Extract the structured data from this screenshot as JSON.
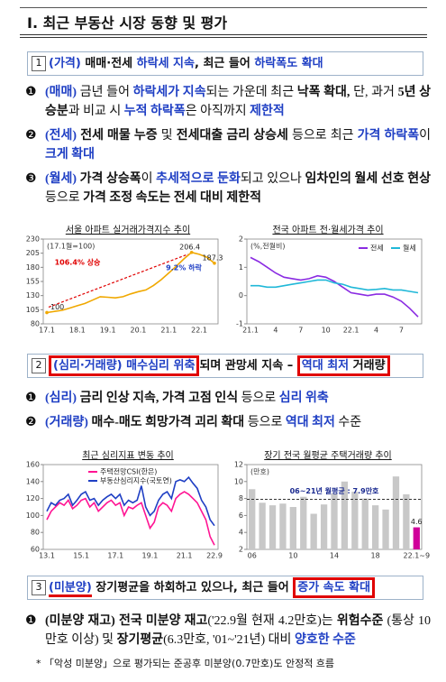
{
  "header": {
    "title": "Ⅰ. 최근 부동산 시장 동향 및 평가"
  },
  "sections": [
    {
      "number": "1",
      "heading": [
        {
          "text": "(가격)",
          "color": "#1f3fc4"
        },
        {
          "text": " 매매·전세 "
        },
        {
          "text": "하락세 지속",
          "color": "#1f3fc4"
        },
        {
          "text": ", 최근 들어 "
        },
        {
          "text": "하락폭도 확대",
          "color": "#1f3fc4"
        }
      ],
      "bullets": [
        {
          "marker": "❶",
          "segments": [
            {
              "text": "(매매)",
              "color": "#1f3fc4",
              "bold": true
            },
            {
              "text": " 금년 들어 "
            },
            {
              "text": "하락세가 지속",
              "color": "#1f3fc4",
              "bold": true
            },
            {
              "text": "되는 가운데 최근 "
            },
            {
              "text": "낙폭 확대,",
              "bold": true
            },
            {
              "text": " 단, 과거 "
            },
            {
              "text": "5년 상승분",
              "bold": true
            },
            {
              "text": "과 비교 시 "
            },
            {
              "text": "누적 하락폭",
              "color": "#1f3fc4",
              "bold": true
            },
            {
              "text": "은 아직까지 "
            },
            {
              "text": "제한적",
              "color": "#1f3fc4",
              "bold": true
            }
          ]
        },
        {
          "marker": "❷",
          "segments": [
            {
              "text": "(전세)",
              "color": "#1f3fc4",
              "bold": true
            },
            {
              "text": " 전세 매물 누증",
              "bold": true
            },
            {
              "text": " 및 "
            },
            {
              "text": "전세대출 금리 상승세",
              "bold": true
            },
            {
              "text": " 등으로 최근 "
            },
            {
              "text": "가격 하락폭",
              "color": "#1f3fc4",
              "bold": true
            },
            {
              "text": "이 "
            },
            {
              "text": "크게 확대",
              "color": "#1f3fc4",
              "bold": true
            }
          ]
        },
        {
          "marker": "❸",
          "segments": [
            {
              "text": "(월세)",
              "color": "#1f3fc4",
              "bold": true
            },
            {
              "text": " 가격 상승폭",
              "bold": true
            },
            {
              "text": "이 "
            },
            {
              "text": "추세적으로 둔화",
              "color": "#1f3fc4",
              "bold": true
            },
            {
              "text": "되고 있으나 "
            },
            {
              "text": "임차인의 월세 선호 현상",
              "bold": true
            },
            {
              "text": " 등으로 "
            },
            {
              "text": "가격 조정 속도는 전세 대비 제한적",
              "bold": true
            }
          ]
        }
      ]
    },
    {
      "number": "2",
      "heading": [
        {
          "text": "(심리·거래량)",
          "color": "#1f3fc4",
          "outline": "#e00000"
        },
        {
          "text": " 매수심리 위축",
          "color": "#1f3fc4",
          "outline": "#e00000"
        },
        {
          "text": "되며 관망세 지속 – "
        },
        {
          "text": "역대 최저",
          "color": "#1f3fc4",
          "outline": "#e00000"
        },
        {
          "text": " 거래량",
          "outline": "#e00000"
        }
      ],
      "bullets": [
        {
          "marker": "❶",
          "segments": [
            {
              "text": "(심리)",
              "color": "#1f3fc4",
              "bold": true
            },
            {
              "text": " 금리 인상 지속, 가격 고점 인식",
              "bold": true
            },
            {
              "text": " 등으로 "
            },
            {
              "text": "심리 위축",
              "color": "#1f3fc4",
              "bold": true
            }
          ]
        },
        {
          "marker": "❷",
          "segments": [
            {
              "text": "(거래량)",
              "color": "#1f3fc4",
              "bold": true
            },
            {
              "text": " 매수-매도 희망가격 괴리 확대",
              "bold": true
            },
            {
              "text": " 등으로 "
            },
            {
              "text": "역대 최저",
              "color": "#1f3fc4",
              "bold": true
            },
            {
              "text": " 수준"
            }
          ]
        }
      ]
    },
    {
      "number": "3",
      "heading": [
        {
          "text": "(미분양)",
          "color": "#1f3fc4",
          "underline": "#e00000"
        },
        {
          "text": " 장기평균을 하회하고 있으나, 최근 들어 "
        },
        {
          "text": "증가 속도 확대",
          "color": "#1f3fc4",
          "outline": "#e00000"
        }
      ],
      "bullets": [
        {
          "marker": "❶",
          "segments": [
            {
              "text": "(미분양 재고)",
              "bold": true
            },
            {
              "text": " 전국 미분양 재고",
              "bold": true
            },
            {
              "text": "('22.9월 현재 4.2만호)는 "
            },
            {
              "text": "위험수준",
              "bold": true
            },
            {
              "text": " (통상 10만호 이상) 및 "
            },
            {
              "text": "장기평균",
              "bold": true
            },
            {
              "text": "(6.3만호, '01~'21년) 대비 "
            },
            {
              "text": "양호한 수준",
              "color": "#1f3fc4",
              "bold": true
            }
          ]
        }
      ]
    }
  ],
  "footnote": "* 「악성 미분양」으로 평가되는 준공후 미분양(0.7만호)도 안정적 흐름",
  "chart_data": [
    {
      "type": "line",
      "title": "서울 아파트 실거래가격지수 추이",
      "note": "(17.1월=100)",
      "categories": [
        "17.1",
        null,
        null,
        null,
        "18.1",
        null,
        null,
        null,
        "19.1",
        null,
        null,
        null,
        "20.1",
        null,
        null,
        null,
        "21.1",
        null,
        null,
        null,
        "22.1",
        null,
        null
      ],
      "series": [
        {
          "name": "서울 아파트 실거래가격지수",
          "color": "#f0a800",
          "values": [
            100,
            102,
            104,
            108,
            112,
            116,
            122,
            128,
            127,
            126,
            128,
            133,
            137,
            140,
            148,
            158,
            170,
            182,
            195,
            206.4,
            203,
            198,
            187.3
          ],
          "value_labels": [
            "100",
            null,
            null,
            null,
            null,
            null,
            null,
            null,
            null,
            null,
            null,
            null,
            null,
            null,
            null,
            null,
            null,
            null,
            null,
            "206.4",
            null,
            null,
            "187.3"
          ]
        }
      ],
      "annotations": [
        {
          "text": "106.4% 상승",
          "color": "#e00000"
        },
        {
          "text": "9.2% 하락",
          "color": "#1f3fc4"
        }
      ],
      "ylim": [
        80,
        230
      ],
      "yticks": [
        80,
        105,
        130,
        155,
        180,
        205,
        230
      ]
    },
    {
      "type": "line",
      "title": "전국 아파트 전·월세가격 추이",
      "note": "(%,전월비)",
      "legend": "top-right",
      "categories": [
        "21.1",
        null,
        null,
        "4",
        null,
        null,
        "7",
        null,
        null,
        "10",
        null,
        null,
        "22.1",
        null,
        null,
        "4",
        null,
        null,
        "7",
        null,
        null
      ],
      "series": [
        {
          "name": "전세",
          "color": "#8a2be2",
          "values": [
            1.35,
            1.2,
            1.0,
            0.8,
            0.65,
            0.6,
            0.55,
            0.6,
            0.7,
            0.65,
            0.5,
            0.3,
            0.1,
            0.05,
            0.0,
            0.05,
            0.05,
            -0.05,
            -0.2,
            -0.45,
            -0.75
          ]
        },
        {
          "name": "월세",
          "color": "#20b8d8",
          "values": [
            0.35,
            0.35,
            0.3,
            0.3,
            0.35,
            0.4,
            0.45,
            0.5,
            0.55,
            0.55,
            0.45,
            0.4,
            0.3,
            0.25,
            0.2,
            0.22,
            0.25,
            0.2,
            0.2,
            0.15,
            0.1
          ]
        }
      ],
      "ylim": [
        -1,
        2
      ],
      "yticks": [
        -1,
        0,
        1,
        2
      ]
    },
    {
      "type": "line",
      "title": "최근 심리지표 변동 추이",
      "legend": "top",
      "categories": [
        "13.1",
        null,
        null,
        null,
        null,
        null,
        null,
        null,
        "15.1",
        null,
        null,
        null,
        null,
        null,
        null,
        null,
        "17.1",
        null,
        null,
        null,
        null,
        null,
        null,
        null,
        "19.1",
        null,
        null,
        null,
        null,
        null,
        null,
        null,
        "21.1",
        null,
        null,
        null,
        null,
        null,
        null,
        "22.9"
      ],
      "series": [
        {
          "name": "주택전망CSI(한은)",
          "color": "#ff1493",
          "values": [
            95,
            105,
            110,
            115,
            112,
            118,
            108,
            112,
            118,
            120,
            110,
            115,
            105,
            110,
            115,
            118,
            112,
            115,
            100,
            110,
            108,
            112,
            115,
            100,
            85,
            92,
            110,
            115,
            112,
            105,
            120,
            125,
            128,
            125,
            120,
            115,
            105,
            95,
            75,
            65
          ]
        },
        {
          "name": "부동산심리지수(국토연)",
          "color": "#1f3fc4",
          "values": [
            105,
            115,
            112,
            118,
            120,
            125,
            112,
            118,
            125,
            128,
            118,
            120,
            112,
            118,
            122,
            125,
            120,
            125,
            112,
            118,
            115,
            118,
            135,
            110,
            100,
            105,
            118,
            125,
            128,
            120,
            140,
            142,
            140,
            145,
            138,
            132,
            118,
            110,
            95,
            88
          ]
        }
      ],
      "ylim": [
        60,
        160
      ],
      "yticks": [
        60,
        80,
        100,
        120,
        140,
        160
      ]
    },
    {
      "type": "bar",
      "title": "장기 전국 월평균 주택거래량 추이",
      "note": "(만호)",
      "categories": [
        "06",
        null,
        null,
        null,
        "10",
        null,
        null,
        null,
        "14",
        null,
        null,
        null,
        "18",
        null,
        null,
        null,
        "22.1~9"
      ],
      "values": [
        9.1,
        7.5,
        7.2,
        7.4,
        7.0,
        8.2,
        6.2,
        7.3,
        8.6,
        10.0,
        8.8,
        8.0,
        7.2,
        6.7,
        10.6,
        8.5,
        4.6
      ],
      "value_labels": [
        null,
        null,
        null,
        null,
        null,
        null,
        null,
        null,
        null,
        null,
        null,
        null,
        null,
        null,
        null,
        null,
        "4.6"
      ],
      "colors": [
        "#c8c8c8",
        "#c8c8c8",
        "#c8c8c8",
        "#c8c8c8",
        "#c8c8c8",
        "#c8c8c8",
        "#c8c8c8",
        "#c8c8c8",
        "#c8c8c8",
        "#c8c8c8",
        "#c8c8c8",
        "#c8c8c8",
        "#c8c8c8",
        "#c8c8c8",
        "#c8c8c8",
        "#c8c8c8",
        "#d0009a"
      ],
      "reference": {
        "value": 7.9,
        "label": "06~21년 월평균 : 7.9만호",
        "color": "#1a2a90"
      },
      "ylim": [
        2,
        12
      ],
      "yticks": [
        2,
        4,
        6,
        8,
        10,
        12
      ]
    }
  ]
}
